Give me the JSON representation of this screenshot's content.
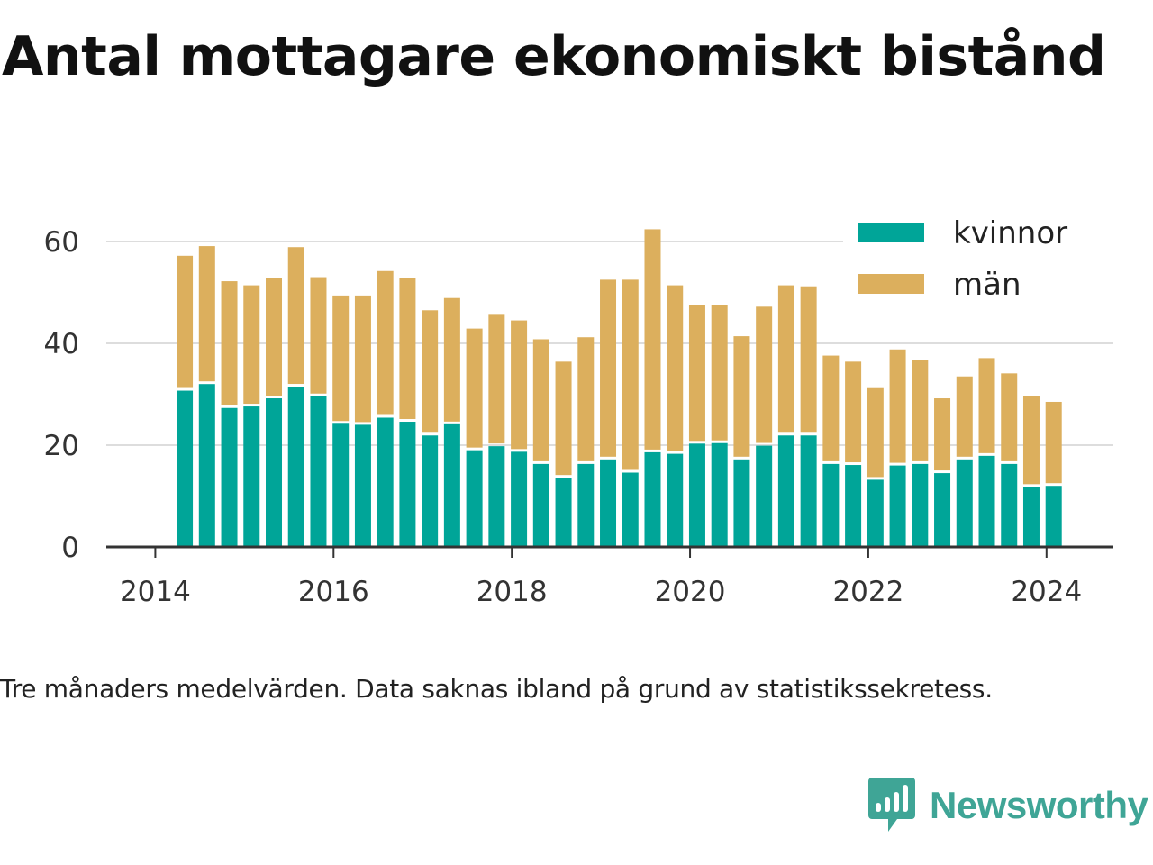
{
  "title": "Antal mottagare ekonomiskt bistånd",
  "note": "Tre månaders medelvärden. Data saknas ibland på grund av statistikssekretess.",
  "brand": {
    "name": "Newsworthy",
    "color": "#3fa596",
    "icon": "newsworthy-logo-icon"
  },
  "colors": {
    "kvinnor": "#00a598",
    "man": "#dcaf5d",
    "grid": "#dddddd",
    "axis": "#333333"
  },
  "chart_data": {
    "type": "bar",
    "stacked": true,
    "x_unit": "year",
    "x": [
      2014.33,
      2014.58,
      2014.83,
      2015.08,
      2015.33,
      2015.58,
      2015.83,
      2016.08,
      2016.33,
      2016.58,
      2016.83,
      2017.08,
      2017.33,
      2017.58,
      2017.83,
      2018.08,
      2018.33,
      2018.58,
      2018.83,
      2019.08,
      2019.33,
      2019.58,
      2019.83,
      2020.08,
      2020.33,
      2020.58,
      2020.83,
      2021.08,
      2021.33,
      2021.58,
      2021.83,
      2022.08,
      2022.33,
      2022.58,
      2022.83,
      2023.08,
      2023.33,
      2023.58,
      2023.83,
      2024.08
    ],
    "series": [
      {
        "name": "kvinnor",
        "values": [
          30.7,
          32.0,
          27.3,
          27.6,
          29.2,
          31.5,
          29.6,
          24.2,
          24.0,
          25.4,
          24.6,
          21.9,
          24.1,
          19.0,
          19.8,
          18.7,
          16.3,
          13.6,
          16.3,
          17.2,
          14.6,
          18.6,
          18.3,
          20.3,
          20.4,
          17.2,
          19.9,
          21.9,
          21.9,
          16.3,
          16.1,
          13.2,
          16.0,
          16.3,
          14.5,
          17.2,
          17.9,
          16.3,
          11.8,
          12.0
        ]
      },
      {
        "name": "män",
        "values": [
          26.5,
          27.1,
          24.9,
          23.8,
          23.6,
          27.4,
          23.4,
          25.2,
          25.4,
          28.8,
          28.2,
          24.6,
          24.8,
          23.9,
          25.8,
          25.8,
          24.5,
          22.8,
          24.9,
          35.3,
          37.9,
          43.8,
          33.1,
          27.2,
          27.1,
          24.2,
          27.3,
          29.5,
          29.3,
          21.3,
          20.3,
          18.0,
          22.8,
          20.4,
          14.7,
          16.3,
          19.2,
          17.8,
          17.8,
          16.5
        ]
      }
    ],
    "xticks": [
      "2014",
      "2016",
      "2018",
      "2020",
      "2022",
      "2024"
    ],
    "yticks": [
      "0",
      "20",
      "40",
      "60"
    ],
    "ylim": [
      0,
      60
    ],
    "xlim": [
      2013.45,
      2024.75
    ],
    "grid": true,
    "legend": "top-right"
  }
}
